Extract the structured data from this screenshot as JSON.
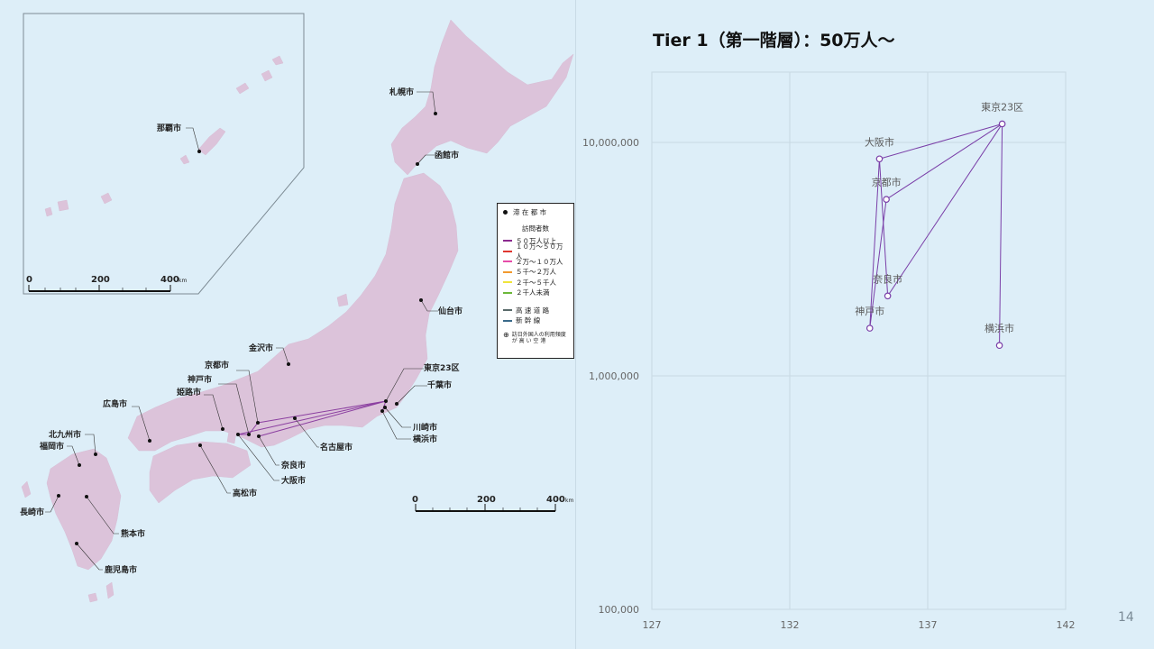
{
  "map": {
    "colors": {
      "sea": "#ddeef8",
      "land": "#dcc3da",
      "route": "#8b3fa0"
    },
    "cities": [
      {
        "name": "札幌市"
      },
      {
        "name": "函館市"
      },
      {
        "name": "仙台市"
      },
      {
        "name": "金沢市"
      },
      {
        "name": "東京23区"
      },
      {
        "name": "千葉市"
      },
      {
        "name": "川崎市"
      },
      {
        "name": "横浜市"
      },
      {
        "name": "京都市"
      },
      {
        "name": "神戸市"
      },
      {
        "name": "姫路市"
      },
      {
        "name": "広島市"
      },
      {
        "name": "名古屋市"
      },
      {
        "name": "奈良市"
      },
      {
        "name": "大阪市"
      },
      {
        "name": "高松市"
      },
      {
        "name": "北九州市"
      },
      {
        "name": "福岡市"
      },
      {
        "name": "長崎市"
      },
      {
        "name": "熊本市"
      },
      {
        "name": "鹿児島市"
      },
      {
        "name": "那覇市"
      }
    ],
    "scale_main": {
      "labels": [
        "0",
        "200",
        "400"
      ],
      "unit": "km"
    },
    "scale_inset": {
      "labels": [
        "0",
        "200",
        "400"
      ],
      "unit": "km"
    },
    "legend": {
      "stay_city": "滞 在 都 市",
      "visitors_title": "訪問者数",
      "items": [
        {
          "label": "５０万人以上",
          "color": "#8b2a8f"
        },
        {
          "label": "１０万～５０万人",
          "color": "#e0362f"
        },
        {
          "label": "２万～１０万人",
          "color": "#e64ca9"
        },
        {
          "label": "５千～２万人",
          "color": "#f29a2e"
        },
        {
          "label": "２千～５千人",
          "color": "#f0e43a"
        },
        {
          "label": "２千人未満",
          "color": "#6cb83a"
        }
      ],
      "roads": [
        {
          "label": "高 速 道 路",
          "color": "#5a6a6a"
        },
        {
          "label": "新 幹 線",
          "color": "#3a6a8a"
        }
      ],
      "airport_line1": "訪日外国人の利用頻度",
      "airport_line2": "が 高 い 空 港",
      "airport_symbol": "⊕"
    }
  },
  "chart": {
    "title": "Tier 1（第一階層）：50万人～",
    "page_number": "14"
  },
  "chart_data": {
    "type": "scatter",
    "title": "Tier 1（第一階層）：50万人～",
    "xlabel": "",
    "ylabel": "",
    "xlim": [
      127,
      142
    ],
    "ylim": [
      100000,
      20000000
    ],
    "y_scale": "log",
    "x_ticks": [
      "127",
      "132",
      "137",
      "142"
    ],
    "y_ticks": [
      "100,000",
      "1,000,000",
      "10,000,000"
    ],
    "grid": true,
    "points": [
      {
        "label": "東京23区",
        "x": 139.7,
        "y": 12000000
      },
      {
        "label": "大阪市",
        "x": 135.25,
        "y": 8500000
      },
      {
        "label": "京都市",
        "x": 135.5,
        "y": 5700000
      },
      {
        "label": "奈良市",
        "x": 135.55,
        "y": 2200000
      },
      {
        "label": "神戸市",
        "x": 134.9,
        "y": 1600000
      },
      {
        "label": "横浜市",
        "x": 139.6,
        "y": 1350000
      }
    ],
    "edges": [
      [
        0,
        1
      ],
      [
        0,
        2
      ],
      [
        0,
        3
      ],
      [
        1,
        4
      ],
      [
        1,
        3
      ],
      [
        2,
        4
      ],
      [
        0,
        5
      ]
    ]
  }
}
